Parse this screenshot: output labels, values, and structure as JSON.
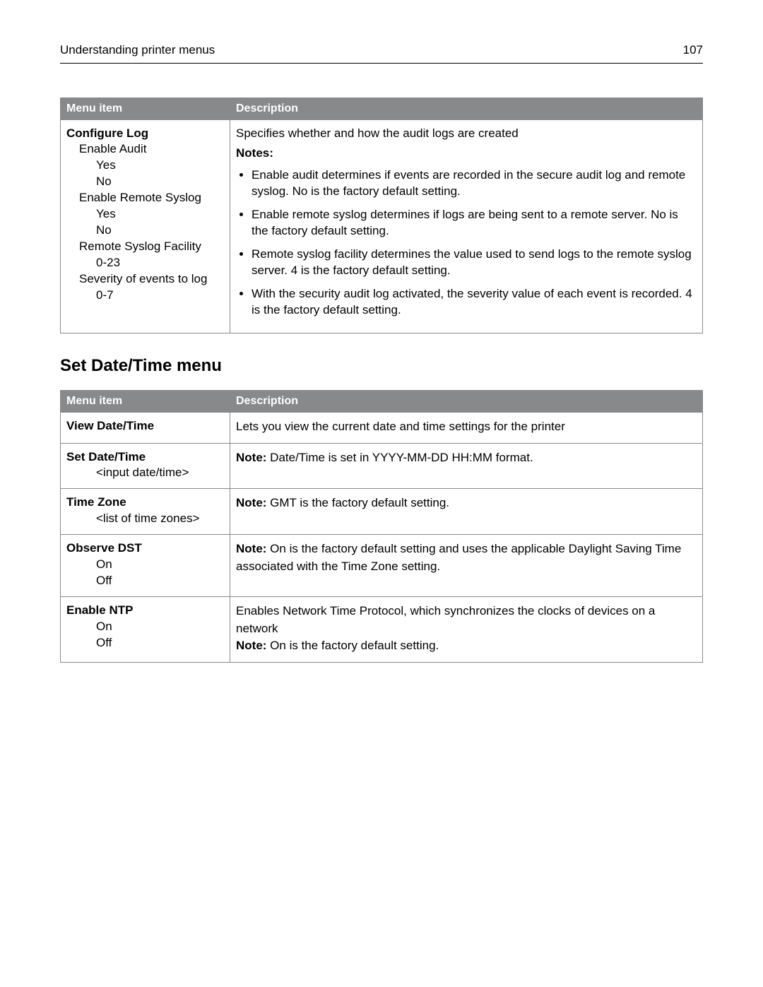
{
  "header": {
    "title": "Understanding printer menus",
    "page_number": "107"
  },
  "colors": {
    "header_bg": "#88898b",
    "header_text": "#ffffff",
    "body_text": "#000000",
    "border": "#88898b",
    "page_bg": "#ffffff"
  },
  "table1": {
    "columns": {
      "menu": "Menu item",
      "desc": "Description"
    },
    "row": {
      "menu_root": "Configure Log",
      "items": [
        {
          "level": 1,
          "text": "Enable Audit"
        },
        {
          "level": 2,
          "text": "Yes"
        },
        {
          "level": 2,
          "text": "No"
        },
        {
          "level": 1,
          "text": "Enable Remote Syslog"
        },
        {
          "level": 2,
          "text": "Yes"
        },
        {
          "level": 2,
          "text": "No"
        },
        {
          "level": 1,
          "text": "Remote Syslog Facility"
        },
        {
          "level": 2,
          "text": "0-23"
        },
        {
          "level": 1,
          "text": "Severity of events to log"
        },
        {
          "level": 2,
          "text": "0-7"
        }
      ],
      "desc_intro": "Specifies whether and how the audit logs are created",
      "notes_label": "Notes:",
      "notes": [
        "Enable audit determines if events are recorded in the secure audit log and remote syslog. No is the factory default setting.",
        "Enable remote syslog determines if logs are being sent to a remote server. No is the factory default setting.",
        "Remote syslog facility determines the value used to send logs to the remote syslog server. 4 is the factory default setting.",
        "With the security audit log activated, the severity value of each event is recorded. 4 is the factory default setting."
      ]
    }
  },
  "section_heading": "Set Date/Time menu",
  "table2": {
    "columns": {
      "menu": "Menu item",
      "desc": "Description"
    },
    "rows": [
      {
        "menu_root": "View Date/Time",
        "items": [],
        "desc": {
          "plain": "Lets you view the current date and time settings for the printer"
        }
      },
      {
        "menu_root": "Set Date/Time",
        "items": [
          {
            "level": 2,
            "text": "<input date/time>"
          }
        ],
        "desc": {
          "note_prefix": "Note:",
          "note_text": " Date/Time is set in YYYY-MM-DD HH:MM format."
        }
      },
      {
        "menu_root": "Time Zone",
        "items": [
          {
            "level": 2,
            "text": "<list of time zones>"
          }
        ],
        "desc": {
          "note_prefix": "Note:",
          "note_text": " GMT is the factory default setting."
        }
      },
      {
        "menu_root": "Observe DST",
        "items": [
          {
            "level": 2,
            "text": "On"
          },
          {
            "level": 2,
            "text": "Off"
          }
        ],
        "desc": {
          "note_prefix": "Note:",
          "note_text": " On is the factory default setting and uses the applicable Daylight Saving Time associated with the Time Zone setting."
        }
      },
      {
        "menu_root": "Enable NTP",
        "items": [
          {
            "level": 2,
            "text": "On"
          },
          {
            "level": 2,
            "text": "Off"
          }
        ],
        "desc": {
          "plain": "Enables Network Time Protocol, which synchronizes the clocks of devices on a network",
          "note_prefix": "Note:",
          "note_text": " On is the factory default setting."
        }
      }
    ]
  }
}
